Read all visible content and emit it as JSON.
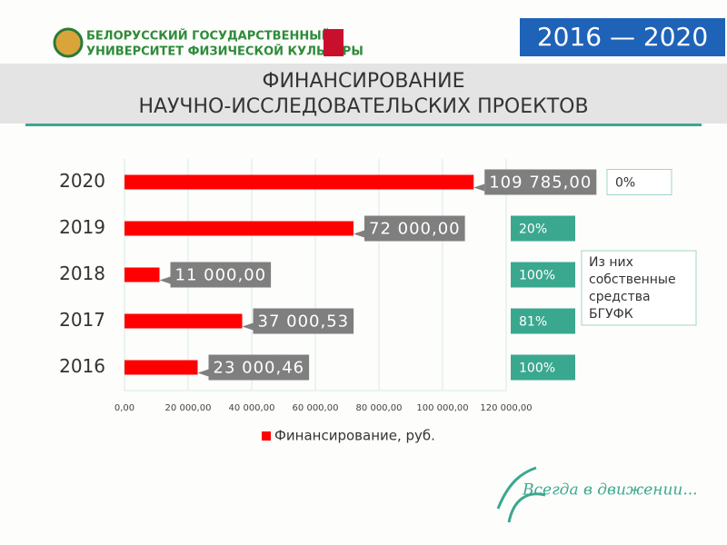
{
  "header": {
    "university": [
      "БЕЛОРУССКИЙ ГОСУДАРСТВЕННЫЙ",
      "УНИВЕРСИТЕТ ФИЗИЧЕСКОЙ КУЛЬТУРЫ"
    ],
    "years": "2016 — 2020"
  },
  "footer": {
    "slogan": "Всегда в движении..."
  },
  "chart_data": {
    "type": "bar",
    "orientation": "horizontal",
    "title": [
      "ФИНАНСИРОВАНИЕ",
      "НАУЧНО-ИССЛЕДОВАТЕЛЬСКИХ ПРОЕКТОВ"
    ],
    "categories": [
      "2020",
      "2019",
      "2018",
      "2017",
      "2016"
    ],
    "series": [
      {
        "name": "Финансирование, руб.",
        "color": "#ff0000",
        "values": [
          109785.0,
          72000.0,
          11000.0,
          37000.53,
          23000.46
        ],
        "value_labels": [
          "109 785,00",
          "72 000,00",
          "11 000,00",
          "37 000,53",
          "23 000,46"
        ]
      }
    ],
    "xlim": [
      0,
      120000
    ],
    "xticks": [
      {
        "value": 0,
        "label": "0,00"
      },
      {
        "value": 20000,
        "label": "20 000,00"
      },
      {
        "value": 40000,
        "label": "40 000,00"
      },
      {
        "value": 60000,
        "label": "60 000,00"
      },
      {
        "value": 80000,
        "label": "80 000,00"
      },
      {
        "value": 100000,
        "label": "100 000,00"
      },
      {
        "value": 120000,
        "label": "120 000,00"
      }
    ],
    "grid": true,
    "legend": "bottom",
    "own_share": {
      "title": [
        "Из них",
        "собственные",
        "средства",
        "БГУФК"
      ],
      "color": "#3aa88f",
      "values": [
        0,
        20,
        100,
        81,
        100
      ],
      "value_labels": [
        "0%",
        "20%",
        "100%",
        "81%",
        "100%"
      ]
    }
  }
}
